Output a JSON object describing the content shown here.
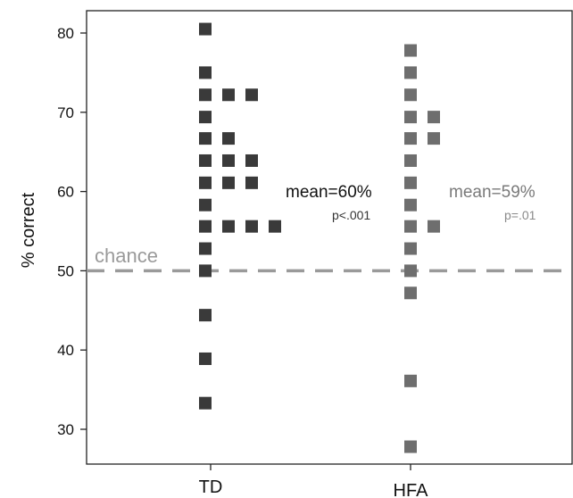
{
  "chart_data": {
    "type": "scatter",
    "ylabel": "% correct",
    "ylim": [
      26,
      84
    ],
    "yticks": [
      30,
      40,
      50,
      60,
      70,
      80
    ],
    "categories": [
      "TD",
      "HFA"
    ],
    "series": [
      {
        "category": "TD",
        "color": "#3a3a3a",
        "points": [
          {
            "col": 0,
            "y": 80.5
          },
          {
            "col": 0,
            "y": 75
          },
          {
            "col": 0,
            "y": 72.2
          },
          {
            "col": 1,
            "y": 72.2
          },
          {
            "col": 2,
            "y": 72.2
          },
          {
            "col": 0,
            "y": 69.4
          },
          {
            "col": 0,
            "y": 66.7
          },
          {
            "col": 1,
            "y": 66.7
          },
          {
            "col": 0,
            "y": 63.9
          },
          {
            "col": 1,
            "y": 63.9
          },
          {
            "col": 2,
            "y": 63.9
          },
          {
            "col": 0,
            "y": 61.1
          },
          {
            "col": 1,
            "y": 61.1
          },
          {
            "col": 2,
            "y": 61.1
          },
          {
            "col": 0,
            "y": 58.3
          },
          {
            "col": 0,
            "y": 55.6
          },
          {
            "col": 1,
            "y": 55.6
          },
          {
            "col": 2,
            "y": 55.6
          },
          {
            "col": 3,
            "y": 55.6
          },
          {
            "col": 0,
            "y": 52.8
          },
          {
            "col": 0,
            "y": 50
          },
          {
            "col": 0,
            "y": 44.4
          },
          {
            "col": 0,
            "y": 38.9
          },
          {
            "col": 0,
            "y": 33.3
          }
        ]
      },
      {
        "category": "HFA",
        "color": "#6e6e6e",
        "points": [
          {
            "col": 0,
            "y": 77.8
          },
          {
            "col": 0,
            "y": 75
          },
          {
            "col": 0,
            "y": 72.2
          },
          {
            "col": 0,
            "y": 69.4
          },
          {
            "col": 1,
            "y": 69.4
          },
          {
            "col": 0,
            "y": 66.7
          },
          {
            "col": 1,
            "y": 66.7
          },
          {
            "col": 0,
            "y": 63.9
          },
          {
            "col": 0,
            "y": 61.1
          },
          {
            "col": 0,
            "y": 58.3
          },
          {
            "col": 0,
            "y": 55.6
          },
          {
            "col": 1,
            "y": 55.6
          },
          {
            "col": 0,
            "y": 52.8
          },
          {
            "col": 0,
            "y": 50
          },
          {
            "col": 0,
            "y": 47.2
          },
          {
            "col": 0,
            "y": 36.1
          },
          {
            "col": 0,
            "y": 27.8
          }
        ]
      }
    ],
    "reference_line": {
      "y": 50,
      "label": "chance",
      "style": "dashed",
      "color": "#9a9a9a"
    },
    "annotations": [
      {
        "category": "TD",
        "text": "mean=60%",
        "subtext": "p<.001",
        "color": "#111111",
        "subcolor": "#333333"
      },
      {
        "category": "HFA",
        "text": "mean=59%",
        "subtext": "p=.01",
        "color": "#7a7a7a",
        "subcolor": "#8a8a8a"
      }
    ]
  }
}
